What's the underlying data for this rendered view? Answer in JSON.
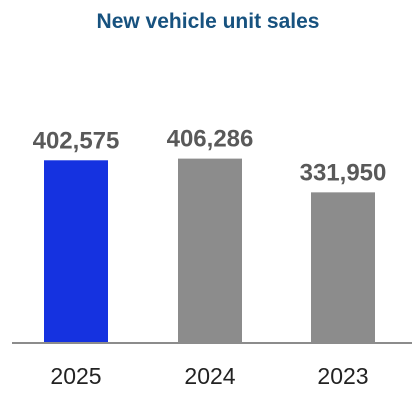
{
  "chart_data": {
    "type": "bar",
    "title": "New vehicle unit sales",
    "categories": [
      "2025",
      "2024",
      "2023"
    ],
    "values": [
      402575,
      406286,
      331950
    ],
    "value_labels": [
      "402,575",
      "406,286",
      "331,950"
    ],
    "xlabel": "",
    "ylabel": "",
    "ylim": [
      0,
      520000
    ],
    "grid": false,
    "legend": "none",
    "bar_colors": [
      "#1532e0",
      "#8c8c8c",
      "#8c8c8c"
    ],
    "colors": {
      "title": "#17527f",
      "data_label": "#595959",
      "tick_label": "#222222",
      "baseline": "#8c8c8c"
    }
  }
}
